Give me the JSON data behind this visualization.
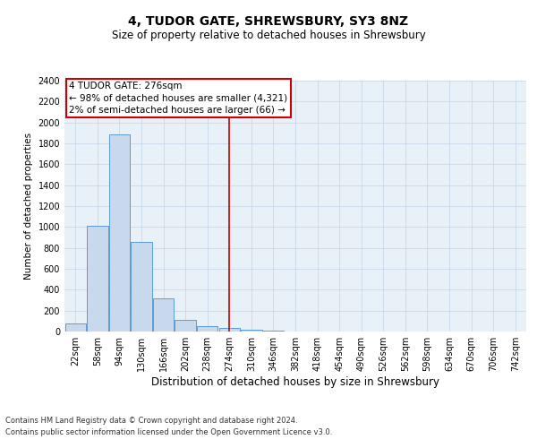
{
  "title": "4, TUDOR GATE, SHREWSBURY, SY3 8NZ",
  "subtitle": "Size of property relative to detached houses in Shrewsbury",
  "xlabel": "Distribution of detached houses by size in Shrewsbury",
  "ylabel": "Number of detached properties",
  "footnote1": "Contains HM Land Registry data © Crown copyright and database right 2024.",
  "footnote2": "Contains public sector information licensed under the Open Government Licence v3.0.",
  "categories": [
    "22sqm",
    "58sqm",
    "94sqm",
    "130sqm",
    "166sqm",
    "202sqm",
    "238sqm",
    "274sqm",
    "310sqm",
    "346sqm",
    "382sqm",
    "418sqm",
    "454sqm",
    "490sqm",
    "526sqm",
    "562sqm",
    "598sqm",
    "634sqm",
    "670sqm",
    "706sqm",
    "742sqm"
  ],
  "values": [
    80,
    1010,
    1890,
    855,
    320,
    110,
    50,
    35,
    20,
    10,
    0,
    0,
    0,
    0,
    0,
    0,
    0,
    0,
    0,
    0,
    0
  ],
  "bar_color": "#c8d9ee",
  "bar_edge_color": "#5b9bd5",
  "annotation_line1": "4 TUDOR GATE: 276sqm",
  "annotation_line2": "← 98% of detached houses are smaller (4,321)",
  "annotation_line3": "2% of semi-detached houses are larger (66) →",
  "vline_index": 7,
  "vline_color": "#cc0000",
  "annotation_box_color": "#ffffff",
  "annotation_box_edge_color": "#cc0000",
  "ylim": [
    0,
    2400
  ],
  "yticks": [
    0,
    200,
    400,
    600,
    800,
    1000,
    1200,
    1400,
    1600,
    1800,
    2000,
    2200,
    2400
  ],
  "grid_color": "#c8d8e8",
  "background_color": "#e8f0f8",
  "title_fontsize": 10,
  "subtitle_fontsize": 8.5,
  "xlabel_fontsize": 8.5,
  "ylabel_fontsize": 7.5,
  "tick_fontsize": 7,
  "annot_fontsize": 7.5,
  "footnote_fontsize": 6
}
